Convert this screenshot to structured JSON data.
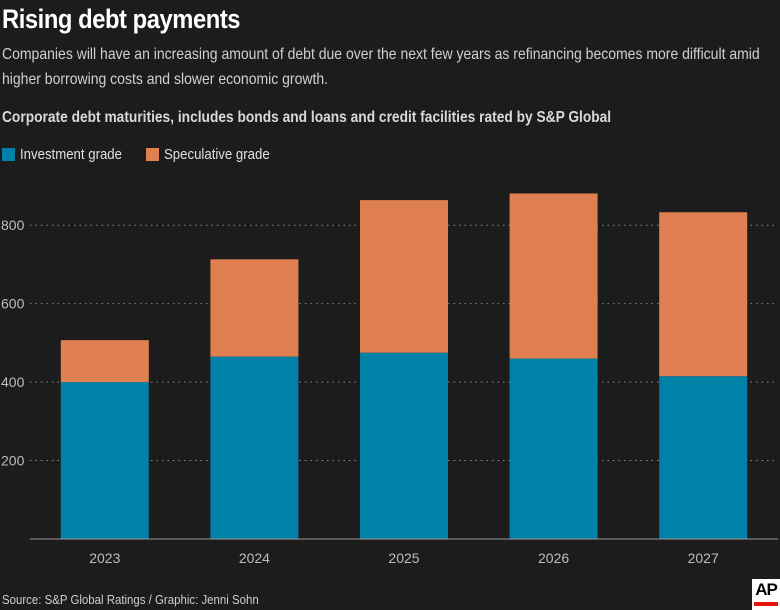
{
  "header": {
    "title": "Rising debt payments",
    "subtitle": "Companies will have an increasing amount of debt due over the next few years as refinancing becomes more difficult amid higher borrowing costs and slower economic growth.",
    "chart_heading": "Corporate debt maturities, includes bonds and loans and credit facilities rated by S&P Global"
  },
  "legend": {
    "investment": "Investment grade",
    "speculative": "Speculative grade"
  },
  "colors": {
    "investment": "#0081a7",
    "speculative": "#e08050",
    "background": "#1c1c1c",
    "grid": "#8a8a8a"
  },
  "footer": {
    "source": "Source: S&P Global Ratings / Graphic: Jenni Sohn",
    "logo_text": "AP"
  },
  "chart_data": {
    "type": "bar",
    "stacked": true,
    "categories": [
      "2023",
      "2024",
      "2025",
      "2026",
      "2027"
    ],
    "series": [
      {
        "name": "Investment grade",
        "values": [
          400,
          465,
          475,
          460,
          415
        ]
      },
      {
        "name": "Speculative grade",
        "values": [
          107,
          248,
          389,
          421,
          418
        ]
      }
    ],
    "ylim": [
      0,
      900
    ],
    "yticks": [
      200,
      400,
      600,
      800
    ],
    "grid": true,
    "legend_position": "top-left"
  }
}
